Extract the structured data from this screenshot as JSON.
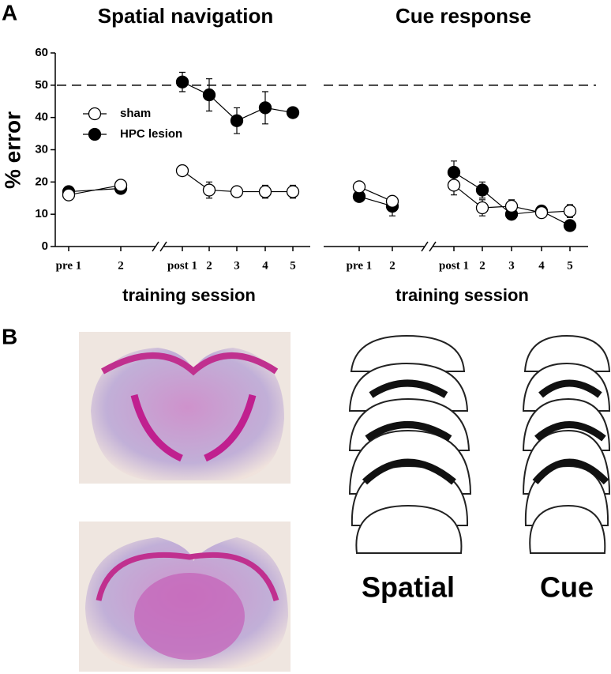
{
  "panel_labels": [
    "A",
    "B"
  ],
  "chart_data": [
    {
      "type": "line",
      "title": "Spatial navigation",
      "x_label": "training session",
      "y_label": "% error",
      "categories": [
        "pre 1",
        "2",
        null,
        "post 1",
        "2",
        "3",
        "4",
        "5"
      ],
      "ylim": [
        0,
        60
      ],
      "yticks": [
        0,
        10,
        20,
        30,
        40,
        50,
        60
      ],
      "reference_line": 50,
      "axis_break": true,
      "legend": "upper left",
      "series": [
        {
          "name": "sham",
          "color": "#000000",
          "filled": false,
          "values": [
            16,
            19,
            null,
            23.5,
            17.5,
            17,
            17,
            17
          ],
          "errors": [
            1,
            1,
            null,
            1,
            2.5,
            1,
            2,
            2
          ]
        },
        {
          "name": "HPC lesion",
          "color": "#000000",
          "filled": true,
          "values": [
            17,
            18,
            null,
            51,
            47,
            39,
            43,
            41.5
          ],
          "errors": [
            1,
            1,
            null,
            3,
            5,
            4,
            5,
            1
          ]
        }
      ]
    },
    {
      "type": "line",
      "title": "Cue response",
      "x_label": "training session",
      "categories": [
        "pre 1",
        "2",
        null,
        "post 1",
        "2",
        "3",
        "4",
        "5"
      ],
      "ylim": [
        0,
        60
      ],
      "reference_line": 50,
      "axis_break": true,
      "series": [
        {
          "name": "sham",
          "color": "#000000",
          "filled": false,
          "values": [
            18.5,
            14,
            null,
            19,
            12,
            12.5,
            10.5,
            11
          ],
          "errors": [
            1,
            1.5,
            null,
            3,
            2.5,
            2,
            1.5,
            2
          ]
        },
        {
          "name": "HPC lesion",
          "color": "#000000",
          "filled": true,
          "values": [
            15.5,
            12.5,
            null,
            23,
            17.5,
            10,
            11,
            6.5
          ],
          "errors": [
            1,
            3,
            null,
            3.5,
            2.5,
            1.5,
            1,
            1
          ]
        }
      ]
    }
  ],
  "panel_b": {
    "labels": [
      "Spatial",
      "Cue"
    ]
  }
}
